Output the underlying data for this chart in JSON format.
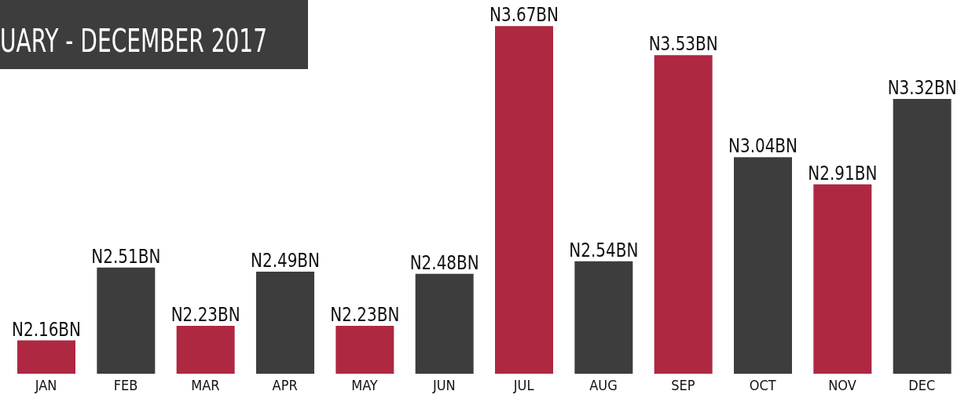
{
  "chart_data": {
    "type": "bar",
    "title": "UARY - DECEMBER 2017",
    "categories": [
      "JAN",
      "FEB",
      "MAR",
      "APR",
      "MAY",
      "JUN",
      "JUL",
      "AUG",
      "SEP",
      "OCT",
      "NOV",
      "DEC"
    ],
    "values": [
      2.16,
      2.51,
      2.23,
      2.49,
      2.23,
      2.48,
      3.67,
      2.54,
      3.53,
      3.04,
      2.91,
      3.32
    ],
    "value_labels": [
      "N2.16BN",
      "N2.51BN",
      "N2.23BN",
      "N2.49BN",
      "N2.23BN",
      "N2.48BN",
      "N3.67BN",
      "N2.54BN",
      "N3.53BN",
      "N3.04BN",
      "N2.91BN",
      "N3.32BN"
    ],
    "colors": [
      "#ae2841",
      "#3d3d3d",
      "#ae2841",
      "#3d3d3d",
      "#ae2841",
      "#3d3d3d",
      "#ae2841",
      "#3d3d3d",
      "#ae2841",
      "#3d3d3d",
      "#ae2841",
      "#3d3d3d"
    ],
    "ylim": [
      2,
      3.75
    ],
    "tick_labels": "x",
    "grid": false,
    "legend": false
  }
}
